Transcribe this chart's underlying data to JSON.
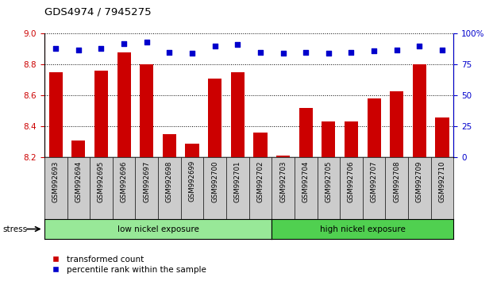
{
  "title": "GDS4974 / 7945275",
  "samples": [
    "GSM992693",
    "GSM992694",
    "GSM992695",
    "GSM992696",
    "GSM992697",
    "GSM992698",
    "GSM992699",
    "GSM992700",
    "GSM992701",
    "GSM992702",
    "GSM992703",
    "GSM992704",
    "GSM992705",
    "GSM992706",
    "GSM992707",
    "GSM992708",
    "GSM992709",
    "GSM992710"
  ],
  "bar_values": [
    8.75,
    8.31,
    8.76,
    8.88,
    8.8,
    8.35,
    8.29,
    8.71,
    8.75,
    8.36,
    8.21,
    8.52,
    8.43,
    8.43,
    8.58,
    8.63,
    8.8,
    8.46
  ],
  "percentile_values": [
    88,
    87,
    88,
    92,
    93,
    85,
    84,
    90,
    91,
    85,
    84,
    85,
    84,
    85,
    86,
    87,
    90,
    87
  ],
  "ylim_left": [
    8.2,
    9.0
  ],
  "ylim_right": [
    0,
    100
  ],
  "yticks_left": [
    8.2,
    8.4,
    8.6,
    8.8,
    9.0
  ],
  "yticks_right": [
    0,
    25,
    50,
    75,
    100
  ],
  "bar_color": "#cc0000",
  "dot_color": "#0000cc",
  "grid_color": "#000000",
  "tick_label_color_left": "#cc0000",
  "tick_label_color_right": "#0000cc",
  "low_group_label": "low nickel exposure",
  "high_group_label": "high nickel exposure",
  "stress_label": "stress",
  "legend_bar_label": "transformed count",
  "legend_dot_label": "percentile rank within the sample",
  "low_bg_color": "#98e898",
  "high_bg_color": "#50d050",
  "xtick_bg_color": "#cccccc",
  "separator_index": 10,
  "n_low": 10,
  "n_high": 8
}
